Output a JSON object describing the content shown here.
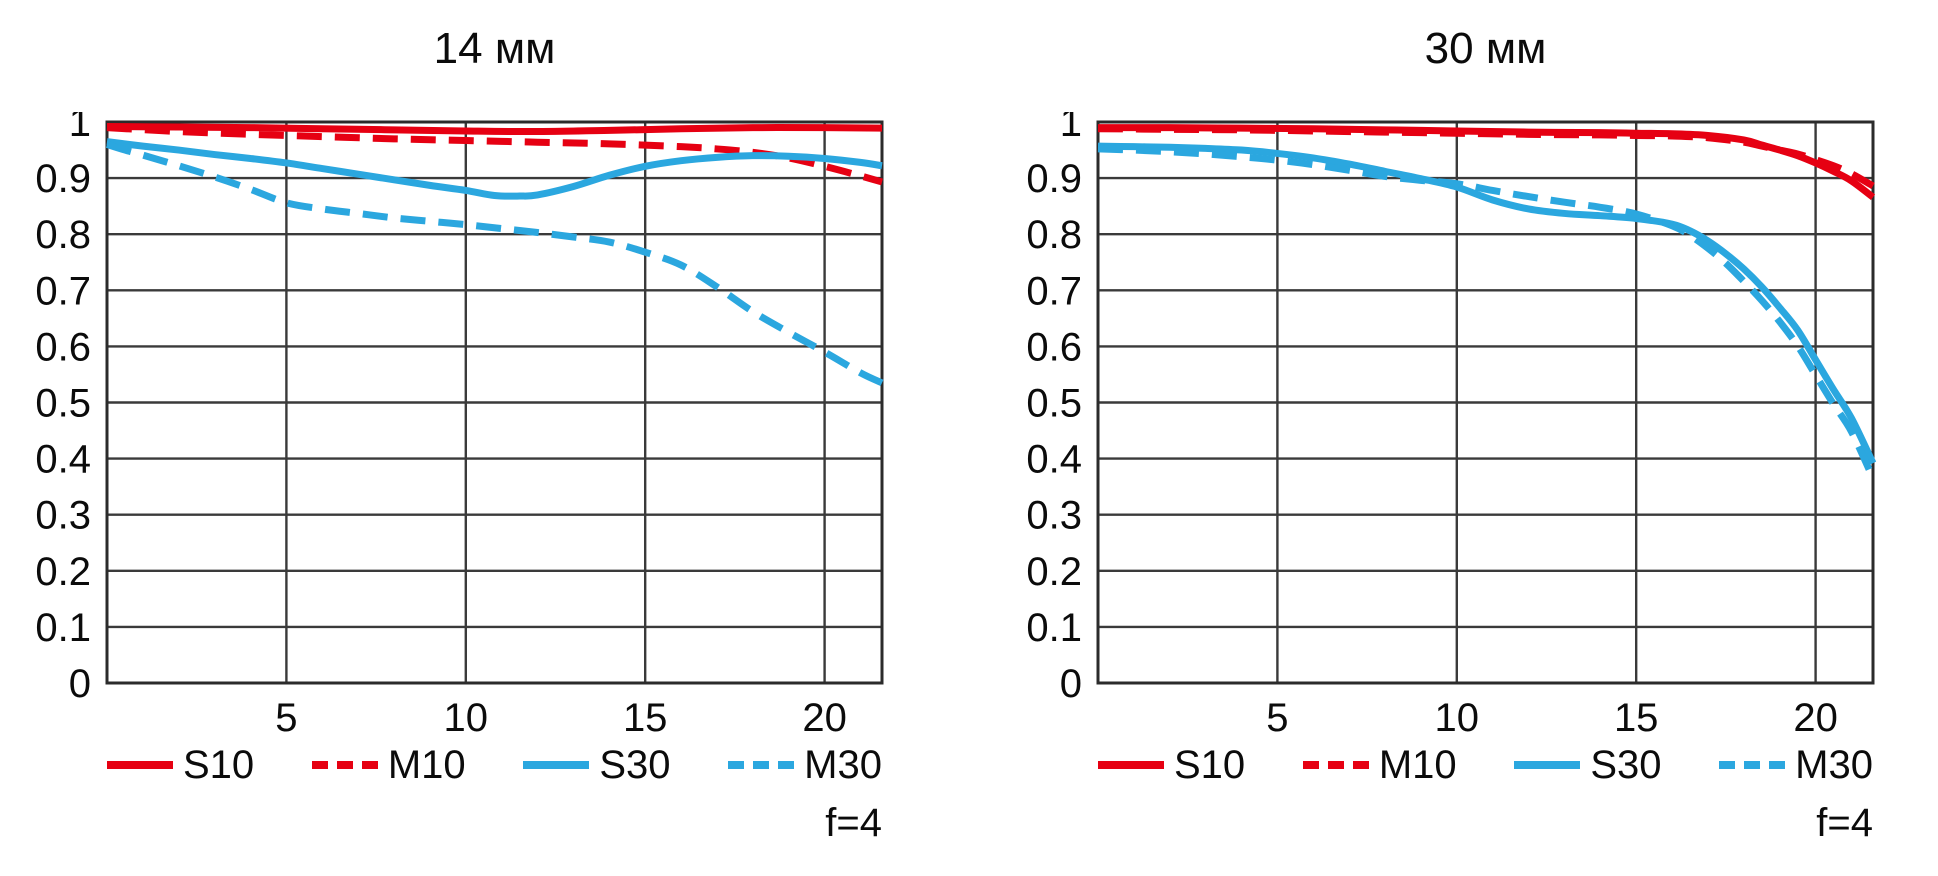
{
  "figure": {
    "aperture_label": "f=4"
  },
  "style": {
    "grid_color": "#3a3a3a",
    "border_color": "#2b2b2b",
    "text_color": "#0b0b0b",
    "red": "#e60012",
    "blue": "#2ba7df"
  },
  "chart_data": [
    {
      "id": "14mm",
      "type": "line",
      "title": "14 мм",
      "xlim": [
        0,
        21.6
      ],
      "ylim": [
        0,
        1
      ],
      "grid": true,
      "legend_position": "bottom",
      "xticks": [
        {
          "v": 5,
          "label": "5"
        },
        {
          "v": 10,
          "label": "10"
        },
        {
          "v": 15,
          "label": "15"
        },
        {
          "v": 20,
          "label": "20"
        }
      ],
      "yticks": [
        {
          "v": 1,
          "label": "1"
        },
        {
          "v": 0.9,
          "label": "0.9"
        },
        {
          "v": 0.8,
          "label": "0.8"
        },
        {
          "v": 0.7,
          "label": "0.7"
        },
        {
          "v": 0.6,
          "label": "0.6"
        },
        {
          "v": 0.5,
          "label": "0.5"
        },
        {
          "v": 0.4,
          "label": "0.4"
        },
        {
          "v": 0.3,
          "label": "0.3"
        },
        {
          "v": 0.2,
          "label": "0.2"
        },
        {
          "v": 0.1,
          "label": "0.1"
        },
        {
          "v": 0,
          "label": "0"
        }
      ],
      "series": [
        {
          "name": "S10",
          "color": "#e60012",
          "dash": false,
          "points": [
            [
              0,
              0.992
            ],
            [
              2,
              0.991
            ],
            [
              4,
              0.99
            ],
            [
              6,
              0.988
            ],
            [
              8,
              0.986
            ],
            [
              10,
              0.984
            ],
            [
              12,
              0.983
            ],
            [
              14,
              0.985
            ],
            [
              16,
              0.988
            ],
            [
              18,
              0.99
            ],
            [
              20,
              0.99
            ],
            [
              21.6,
              0.989
            ]
          ]
        },
        {
          "name": "M10",
          "color": "#e60012",
          "dash": true,
          "points": [
            [
              0,
              0.99
            ],
            [
              2,
              0.983
            ],
            [
              4,
              0.978
            ],
            [
              6,
              0.974
            ],
            [
              8,
              0.97
            ],
            [
              10,
              0.967
            ],
            [
              12,
              0.964
            ],
            [
              14,
              0.961
            ],
            [
              16,
              0.956
            ],
            [
              17,
              0.952
            ],
            [
              18,
              0.946
            ],
            [
              19,
              0.936
            ],
            [
              20,
              0.921
            ],
            [
              21,
              0.904
            ],
            [
              21.6,
              0.893
            ]
          ]
        },
        {
          "name": "S30",
          "color": "#2ba7df",
          "dash": false,
          "points": [
            [
              0,
              0.965
            ],
            [
              1,
              0.957
            ],
            [
              2,
              0.95
            ],
            [
              3,
              0.942
            ],
            [
              4,
              0.935
            ],
            [
              5,
              0.927
            ],
            [
              6,
              0.917
            ],
            [
              7,
              0.907
            ],
            [
              8,
              0.897
            ],
            [
              9,
              0.887
            ],
            [
              10,
              0.878
            ],
            [
              10.8,
              0.869
            ],
            [
              11.5,
              0.868
            ],
            [
              12,
              0.87
            ],
            [
              13,
              0.885
            ],
            [
              14,
              0.905
            ],
            [
              15,
              0.921
            ],
            [
              16,
              0.931
            ],
            [
              17,
              0.937
            ],
            [
              18,
              0.94
            ],
            [
              19,
              0.939
            ],
            [
              20,
              0.935
            ],
            [
              21,
              0.928
            ],
            [
              21.6,
              0.922
            ]
          ]
        },
        {
          "name": "M30",
          "color": "#2ba7df",
          "dash": true,
          "points": [
            [
              0,
              0.96
            ],
            [
              0.5,
              0.95
            ],
            [
              1,
              0.941
            ],
            [
              2,
              0.922
            ],
            [
              3,
              0.902
            ],
            [
              4,
              0.88
            ],
            [
              5,
              0.856
            ],
            [
              6,
              0.845
            ],
            [
              7,
              0.837
            ],
            [
              8,
              0.829
            ],
            [
              9,
              0.823
            ],
            [
              10,
              0.817
            ],
            [
              11,
              0.81
            ],
            [
              12,
              0.803
            ],
            [
              13,
              0.795
            ],
            [
              14,
              0.786
            ],
            [
              15,
              0.768
            ],
            [
              16,
              0.745
            ],
            [
              17,
              0.706
            ],
            [
              18,
              0.662
            ],
            [
              19,
              0.625
            ],
            [
              20,
              0.59
            ],
            [
              21,
              0.553
            ],
            [
              21.6,
              0.535
            ]
          ]
        }
      ]
    },
    {
      "id": "30mm",
      "type": "line",
      "title": "30 мм",
      "xlim": [
        0,
        21.6
      ],
      "ylim": [
        0,
        1
      ],
      "grid": true,
      "legend_position": "bottom",
      "xticks": [
        {
          "v": 5,
          "label": "5"
        },
        {
          "v": 10,
          "label": "10"
        },
        {
          "v": 15,
          "label": "15"
        },
        {
          "v": 20,
          "label": "20"
        }
      ],
      "yticks": [
        {
          "v": 1,
          "label": "1"
        },
        {
          "v": 0.9,
          "label": "0.9"
        },
        {
          "v": 0.8,
          "label": "0.8"
        },
        {
          "v": 0.7,
          "label": "0.7"
        },
        {
          "v": 0.6,
          "label": "0.6"
        },
        {
          "v": 0.5,
          "label": "0.5"
        },
        {
          "v": 0.4,
          "label": "0.4"
        },
        {
          "v": 0.3,
          "label": "0.3"
        },
        {
          "v": 0.2,
          "label": "0.2"
        },
        {
          "v": 0.1,
          "label": "0.1"
        },
        {
          "v": 0,
          "label": "0"
        }
      ],
      "series": [
        {
          "name": "S10",
          "color": "#e60012",
          "dash": false,
          "points": [
            [
              0,
              0.99
            ],
            [
              2,
              0.99
            ],
            [
              4,
              0.989
            ],
            [
              6,
              0.988
            ],
            [
              8,
              0.986
            ],
            [
              10,
              0.984
            ],
            [
              12,
              0.982
            ],
            [
              14,
              0.981
            ],
            [
              15,
              0.98
            ],
            [
              16,
              0.979
            ],
            [
              17,
              0.976
            ],
            [
              18,
              0.968
            ],
            [
              18.5,
              0.959
            ],
            [
              19,
              0.95
            ],
            [
              19.5,
              0.94
            ],
            [
              20,
              0.927
            ],
            [
              20.5,
              0.912
            ],
            [
              21,
              0.895
            ],
            [
              21.6,
              0.866
            ]
          ]
        },
        {
          "name": "M10",
          "color": "#e60012",
          "dash": true,
          "points": [
            [
              0,
              0.988
            ],
            [
              2,
              0.987
            ],
            [
              4,
              0.986
            ],
            [
              6,
              0.984
            ],
            [
              8,
              0.982
            ],
            [
              10,
              0.98
            ],
            [
              12,
              0.978
            ],
            [
              14,
              0.977
            ],
            [
              15,
              0.976
            ],
            [
              16,
              0.975
            ],
            [
              17,
              0.972
            ],
            [
              18,
              0.964
            ],
            [
              18.5,
              0.957
            ],
            [
              19,
              0.95
            ],
            [
              19.5,
              0.943
            ],
            [
              20,
              0.933
            ],
            [
              20.5,
              0.922
            ],
            [
              21,
              0.908
            ],
            [
              21.6,
              0.886
            ]
          ]
        },
        {
          "name": "S30",
          "color": "#2ba7df",
          "dash": false,
          "points": [
            [
              0,
              0.957
            ],
            [
              1,
              0.956
            ],
            [
              2,
              0.955
            ],
            [
              3,
              0.953
            ],
            [
              4,
              0.95
            ],
            [
              5,
              0.944
            ],
            [
              6,
              0.936
            ],
            [
              7,
              0.925
            ],
            [
              8,
              0.912
            ],
            [
              9,
              0.899
            ],
            [
              10,
              0.884
            ],
            [
              11,
              0.861
            ],
            [
              12,
              0.845
            ],
            [
              13,
              0.837
            ],
            [
              14,
              0.833
            ],
            [
              15,
              0.828
            ],
            [
              16,
              0.818
            ],
            [
              16.5,
              0.806
            ],
            [
              17,
              0.788
            ],
            [
              17.5,
              0.765
            ],
            [
              18,
              0.738
            ],
            [
              18.5,
              0.706
            ],
            [
              19,
              0.669
            ],
            [
              19.5,
              0.629
            ],
            [
              20,
              0.576
            ],
            [
              20.5,
              0.523
            ],
            [
              21,
              0.472
            ],
            [
              21.6,
              0.392
            ]
          ]
        },
        {
          "name": "M30",
          "color": "#2ba7df",
          "dash": true,
          "points": [
            [
              0,
              0.952
            ],
            [
              1,
              0.95
            ],
            [
              2,
              0.947
            ],
            [
              3,
              0.943
            ],
            [
              4,
              0.938
            ],
            [
              5,
              0.932
            ],
            [
              6,
              0.924
            ],
            [
              7,
              0.914
            ],
            [
              8,
              0.903
            ],
            [
              9,
              0.896
            ],
            [
              10,
              0.89
            ],
            [
              11,
              0.878
            ],
            [
              12,
              0.867
            ],
            [
              13,
              0.857
            ],
            [
              14,
              0.848
            ],
            [
              15,
              0.836
            ],
            [
              16,
              0.815
            ],
            [
              16.5,
              0.798
            ],
            [
              17,
              0.775
            ],
            [
              17.5,
              0.748
            ],
            [
              18,
              0.716
            ],
            [
              18.5,
              0.682
            ],
            [
              19,
              0.644
            ],
            [
              19.5,
              0.601
            ],
            [
              20,
              0.549
            ],
            [
              20.5,
              0.497
            ],
            [
              21,
              0.448
            ],
            [
              21.6,
              0.365
            ]
          ]
        }
      ]
    }
  ]
}
